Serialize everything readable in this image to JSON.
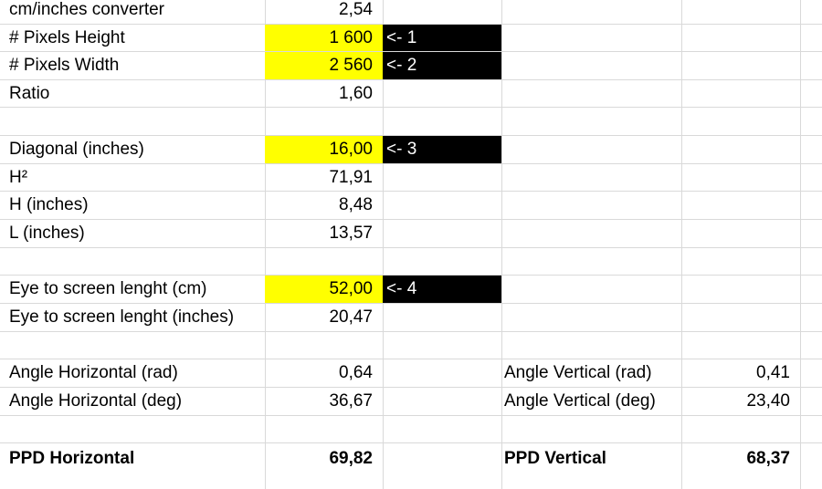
{
  "colors": {
    "input_fill": "#ffff00",
    "marker_fill": "#000000",
    "marker_text": "#ffffff",
    "grid": "#d9d9d9"
  },
  "rows": [
    {
      "a": "cm/inches converter",
      "b": "2,54",
      "c": "",
      "d": "",
      "e": "",
      "b_fill": "",
      "c_fill": "",
      "bold": false
    },
    {
      "a": "# Pixels Height",
      "b": "1 600",
      "c": "<- 1",
      "d": "",
      "e": "",
      "b_fill": "#ffff00",
      "c_fill": "#000000",
      "bold": false
    },
    {
      "a": "# Pixels Width",
      "b": "2 560",
      "c": "<- 2",
      "d": "",
      "e": "",
      "b_fill": "#ffff00",
      "c_fill": "#000000",
      "bold": false
    },
    {
      "a": "Ratio",
      "b": "1,60",
      "c": "",
      "d": "",
      "e": "",
      "b_fill": "",
      "c_fill": "",
      "bold": false
    },
    {
      "a": "",
      "b": "",
      "c": "",
      "d": "",
      "e": "",
      "b_fill": "",
      "c_fill": "",
      "bold": false
    },
    {
      "a": "Diagonal (inches)",
      "b": "16,00",
      "c": "<- 3",
      "d": "",
      "e": "",
      "b_fill": "#ffff00",
      "c_fill": "#000000",
      "bold": false
    },
    {
      "a": "H²",
      "b": "71,91",
      "c": "",
      "d": "",
      "e": "",
      "b_fill": "",
      "c_fill": "",
      "bold": false
    },
    {
      "a": "H (inches)",
      "b": "8,48",
      "c": "",
      "d": "",
      "e": "",
      "b_fill": "",
      "c_fill": "",
      "bold": false
    },
    {
      "a": "L (inches)",
      "b": "13,57",
      "c": "",
      "d": "",
      "e": "",
      "b_fill": "",
      "c_fill": "",
      "bold": false
    },
    {
      "a": "",
      "b": "",
      "c": "",
      "d": "",
      "e": "",
      "b_fill": "",
      "c_fill": "",
      "bold": false
    },
    {
      "a": "Eye to screen lenght (cm)",
      "b": "52,00",
      "c": "<- 4",
      "d": "",
      "e": "",
      "b_fill": "#ffff00",
      "c_fill": "#000000",
      "bold": false
    },
    {
      "a": "Eye to screen lenght (inches)",
      "b": "20,47",
      "c": "",
      "d": "",
      "e": "",
      "b_fill": "",
      "c_fill": "",
      "bold": false
    },
    {
      "a": "",
      "b": "",
      "c": "",
      "d": "",
      "e": "",
      "b_fill": "",
      "c_fill": "",
      "bold": false
    },
    {
      "a": "Angle Horizontal (rad)",
      "b": "0,64",
      "c": "",
      "d": "Angle Vertical (rad)",
      "e": "0,41",
      "b_fill": "",
      "c_fill": "",
      "bold": false
    },
    {
      "a": "Angle Horizontal (deg)",
      "b": "36,67",
      "c": "",
      "d": "Angle Vertical (deg)",
      "e": "23,40",
      "b_fill": "",
      "c_fill": "",
      "bold": false
    },
    {
      "a": "",
      "b": "",
      "c": "",
      "d": "",
      "e": "",
      "b_fill": "",
      "c_fill": "",
      "bold": false
    },
    {
      "a": "PPD Horizontal",
      "b": "69,82",
      "c": "",
      "d": "PPD Vertical",
      "e": "68,37",
      "b_fill": "",
      "c_fill": "",
      "bold": true
    }
  ]
}
